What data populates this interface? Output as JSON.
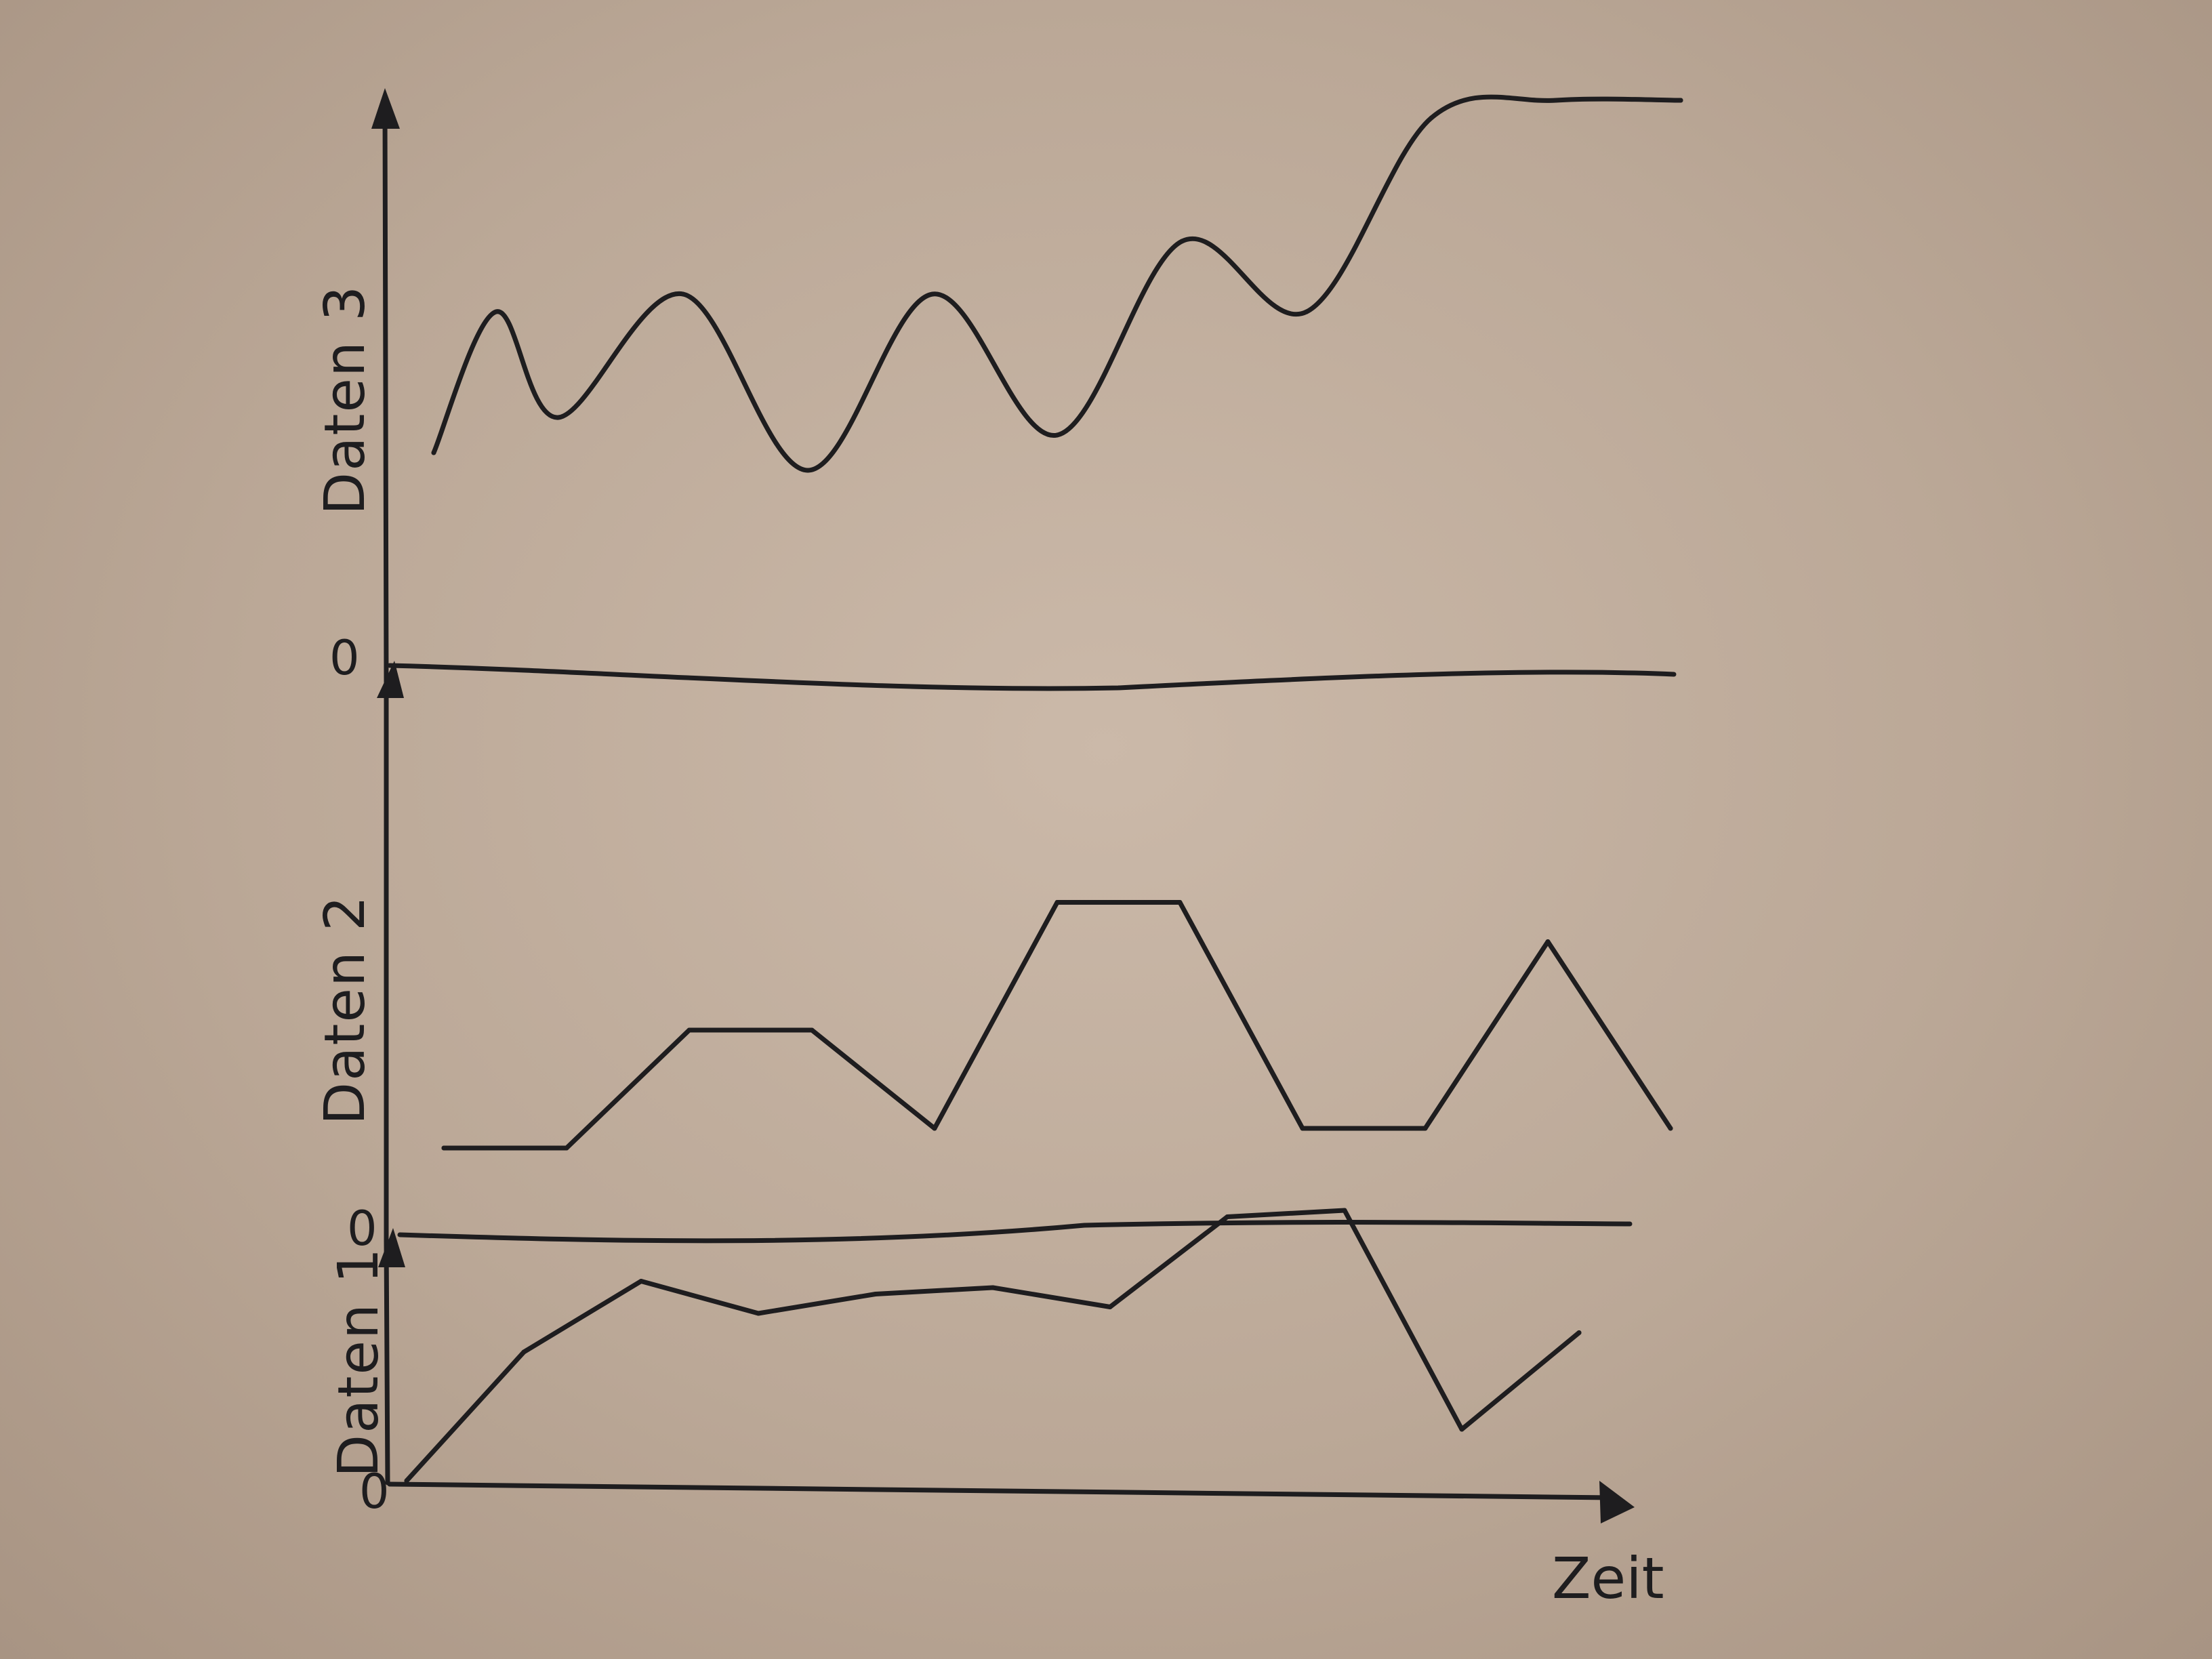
{
  "chart_data": [
    {
      "type": "line",
      "ylabel": "Daten 3",
      "xlabel": "",
      "y_origin_label": "0",
      "x": [
        0,
        0.5,
        1,
        2,
        3,
        4,
        5,
        6,
        7,
        8,
        9,
        10
      ],
      "values": [
        1.2,
        2.0,
        1.4,
        2.1,
        1.1,
        2.1,
        1.3,
        2.4,
        2.0,
        3.1,
        3.2,
        3.2
      ]
    },
    {
      "type": "line",
      "ylabel": "Daten 2",
      "xlabel": "",
      "y_origin_label": "0",
      "x": [
        0,
        1,
        2,
        3,
        4,
        5,
        6,
        7,
        8,
        9,
        10
      ],
      "values": [
        0.8,
        0.8,
        2.0,
        2.0,
        1.0,
        3.3,
        3.3,
        1.0,
        1.0,
        2.9,
        1.0
      ]
    },
    {
      "type": "line",
      "ylabel": "Daten 1",
      "xlabel": "Zeit",
      "y_origin_label": "0",
      "x": [
        0,
        1,
        2,
        3,
        4,
        5,
        6,
        7,
        8,
        9,
        10
      ],
      "values": [
        0,
        2.0,
        3.1,
        2.6,
        2.9,
        3.0,
        2.7,
        4.1,
        4.2,
        0.8,
        2.3
      ]
    }
  ]
}
